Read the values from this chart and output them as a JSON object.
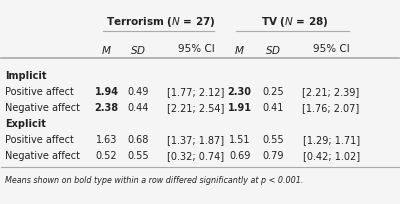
{
  "title_left": "Terrorism (⁠N⁠ = 27)",
  "title_right": "TV (⁠N⁠ = 28)",
  "col_headers": [
    "M",
    "SD",
    "95% CI",
    "M",
    "SD",
    "95% CI"
  ],
  "section_implicit": "Implicit",
  "section_explicit": "Explicit",
  "rows": [
    {
      "label": "Positive affect",
      "section": "implicit",
      "t_m": "1.94",
      "t_m_bold": true,
      "t_sd": "0.49",
      "t_sd_bold": false,
      "t_ci": "[1.77; 2.12]",
      "t_ci_bold": false,
      "tv_m": "2.30",
      "tv_m_bold": true,
      "tv_sd": "0.25",
      "tv_sd_bold": false,
      "tv_ci": "[2.21; 2.39]",
      "tv_ci_bold": false
    },
    {
      "label": "Negative affect",
      "section": "implicit",
      "t_m": "2.38",
      "t_m_bold": true,
      "t_sd": "0.44",
      "t_sd_bold": false,
      "t_ci": "[2.21; 2.54]",
      "t_ci_bold": false,
      "tv_m": "1.91",
      "tv_m_bold": true,
      "tv_sd": "0.41",
      "tv_sd_bold": false,
      "tv_ci": "[1.76; 2.07]",
      "tv_ci_bold": false
    },
    {
      "label": "Positive affect",
      "section": "explicit",
      "t_m": "1.63",
      "t_m_bold": false,
      "t_sd": "0.68",
      "t_sd_bold": false,
      "t_ci": "[1.37; 1.87]",
      "t_ci_bold": false,
      "tv_m": "1.51",
      "tv_m_bold": false,
      "tv_sd": "0.55",
      "tv_sd_bold": false,
      "tv_ci": "[1.29; 1.71]",
      "tv_ci_bold": false
    },
    {
      "label": "Negative affect",
      "section": "explicit",
      "t_m": "0.52",
      "t_m_bold": false,
      "t_sd": "0.55",
      "t_sd_bold": false,
      "t_ci": "[0.32; 0.74]",
      "t_ci_bold": false,
      "tv_m": "0.69",
      "tv_m_bold": false,
      "tv_sd": "0.79",
      "tv_sd_bold": false,
      "tv_ci": "[0.42; 1.02]",
      "tv_ci_bold": false
    }
  ],
  "footnote": "Means shown on bold type within a row differed significantly at p < 0.001.",
  "bg_color": "#f5f5f5",
  "text_color": "#222222",
  "line_color": "#aaaaaa"
}
